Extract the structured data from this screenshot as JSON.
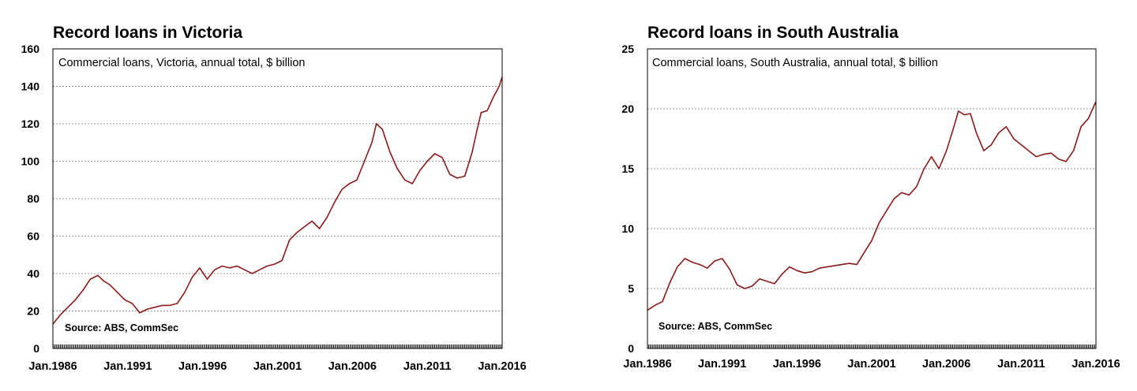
{
  "chart_data": [
    {
      "type": "line",
      "title": "Record loans in Victoria",
      "subtitle": "Commercial loans, Victoria, annual total, $ billion",
      "source": "Source: ABS, CommSec",
      "ylim": [
        0,
        160
      ],
      "yticks": [
        0,
        20,
        40,
        60,
        80,
        100,
        120,
        140,
        160
      ],
      "xlim": [
        1986.0,
        2016.0
      ],
      "xticks": [
        "Jan.1986",
        "Jan.1991",
        "Jan.1996",
        "Jan.2001",
        "Jan.2006",
        "Jan.2011",
        "Jan.2016"
      ],
      "grid": true,
      "series": [
        {
          "color": "#8b1a1a",
          "x": [
            1986.0,
            1986.5,
            1987.0,
            1987.5,
            1988.0,
            1988.5,
            1989.0,
            1989.4,
            1989.8,
            1990.3,
            1990.8,
            1991.3,
            1991.8,
            1992.3,
            1992.8,
            1993.3,
            1993.8,
            1994.3,
            1994.8,
            1995.3,
            1995.8,
            1996.3,
            1996.8,
            1997.3,
            1997.8,
            1998.3,
            1998.8,
            1999.3,
            1999.8,
            2000.3,
            2000.8,
            2001.3,
            2001.8,
            2002.3,
            2002.8,
            2003.3,
            2003.8,
            2004.3,
            2004.8,
            2005.3,
            2005.8,
            2006.3,
            2006.8,
            2007.3,
            2007.6,
            2008.0,
            2008.5,
            2009.0,
            2009.5,
            2010.0,
            2010.5,
            2011.0,
            2011.5,
            2012.0,
            2012.5,
            2013.0,
            2013.5,
            2014.0,
            2014.3,
            2014.6,
            2015.0,
            2015.4,
            2015.8,
            2016.0
          ],
          "values": [
            13,
            18,
            22,
            26,
            31,
            37,
            39,
            36,
            34,
            30,
            26,
            24,
            19,
            21,
            22,
            23,
            23,
            24,
            30,
            38,
            43,
            37,
            42,
            44,
            43,
            44,
            42,
            40,
            42,
            44,
            45,
            47,
            58,
            62,
            65,
            68,
            64,
            70,
            78,
            85,
            88,
            90,
            100,
            110,
            120,
            117,
            105,
            96,
            90,
            88,
            95,
            100,
            104,
            102,
            93,
            91,
            92,
            105,
            116,
            126,
            127,
            134,
            140,
            145
          ]
        }
      ]
    },
    {
      "type": "line",
      "title": "Record loans in South Australia",
      "subtitle": "Commercial loans, South Australia, annual total, $ billion",
      "source": "Source: ABS, CommSec",
      "ylim": [
        0,
        25
      ],
      "yticks": [
        0,
        5,
        10,
        15,
        20,
        25
      ],
      "xlim": [
        1986.0,
        2016.0
      ],
      "xticks": [
        "Jan.1986",
        "Jan.1991",
        "Jan.1996",
        "Jan.2001",
        "Jan.2006",
        "Jan.2011",
        "Jan.2016"
      ],
      "grid": true,
      "series": [
        {
          "color": "#8b1a1a",
          "x": [
            1986.0,
            1986.5,
            1987.0,
            1987.5,
            1988.0,
            1988.5,
            1989.0,
            1989.5,
            1990.0,
            1990.5,
            1991.0,
            1991.5,
            1992.0,
            1992.5,
            1993.0,
            1993.5,
            1994.0,
            1994.5,
            1995.0,
            1995.5,
            1996.0,
            1996.5,
            1997.0,
            1997.5,
            1998.0,
            1998.5,
            1999.0,
            1999.5,
            2000.0,
            2000.5,
            2001.0,
            2001.5,
            2002.0,
            2002.5,
            2003.0,
            2003.5,
            2004.0,
            2004.5,
            2005.0,
            2005.5,
            2006.0,
            2006.5,
            2006.8,
            2007.2,
            2007.6,
            2008.0,
            2008.5,
            2009.0,
            2009.5,
            2010.0,
            2010.5,
            2011.0,
            2011.5,
            2012.0,
            2012.5,
            2013.0,
            2013.5,
            2014.0,
            2014.5,
            2015.0,
            2015.5,
            2016.0
          ],
          "values": [
            3.2,
            3.6,
            3.9,
            5.5,
            6.8,
            7.5,
            7.2,
            7.0,
            6.7,
            7.3,
            7.5,
            6.6,
            5.3,
            5.0,
            5.2,
            5.8,
            5.6,
            5.4,
            6.2,
            6.8,
            6.5,
            6.3,
            6.4,
            6.7,
            6.8,
            6.9,
            7.0,
            7.1,
            7.0,
            8.0,
            9.0,
            10.5,
            11.5,
            12.5,
            13.0,
            12.8,
            13.5,
            15.0,
            16.0,
            15.0,
            16.5,
            18.5,
            19.8,
            19.5,
            19.6,
            18.0,
            16.5,
            17.0,
            18.0,
            18.5,
            17.5,
            17.0,
            16.5,
            16.0,
            16.2,
            16.3,
            15.8,
            15.6,
            16.5,
            18.5,
            19.2,
            20.6
          ]
        }
      ]
    }
  ]
}
